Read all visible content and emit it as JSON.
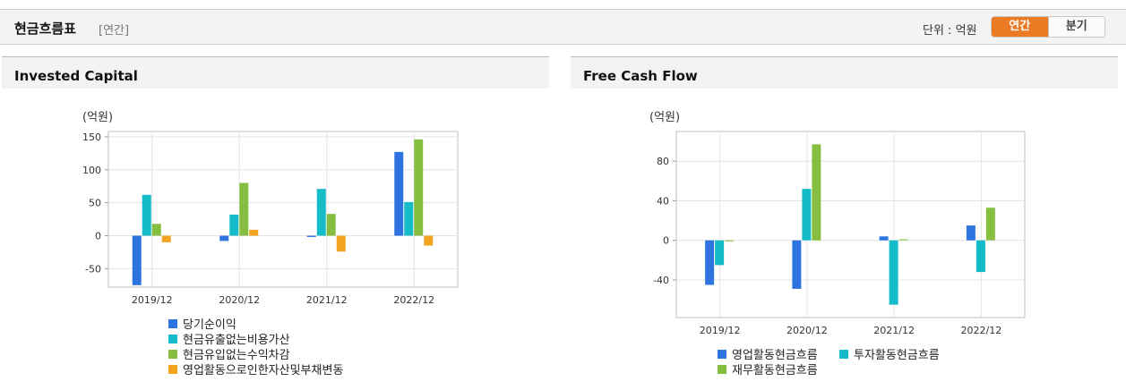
{
  "header": {
    "title": "현금흐름표",
    "period_tag": "[연간]",
    "unit_label": "단위 : 억원",
    "toggle_annual": "연간",
    "toggle_quarter": "분기"
  },
  "chart_data": [
    {
      "type": "bar",
      "panel_title": "Invested Capital",
      "y_unit": "(억원)",
      "categories": [
        "2019/12",
        "2020/12",
        "2021/12",
        "2022/12"
      ],
      "ylim": [
        -78,
        158
      ],
      "yticks": [
        150,
        100,
        50,
        0,
        -50
      ],
      "series": [
        {
          "name": "당기순이익",
          "color": "#2e74e0",
          "values": [
            -75,
            -8,
            -2,
            127
          ]
        },
        {
          "name": "현금유출없는비용가산",
          "color": "#14bcc9",
          "values": [
            62,
            32,
            71,
            51
          ]
        },
        {
          "name": "현금유입없는수익차감",
          "color": "#86bf40",
          "values": [
            18,
            80,
            33,
            146
          ]
        },
        {
          "name": "영업활동으로인한자산및부채변동",
          "color": "#f2a421",
          "values": [
            -10,
            9,
            -24,
            -15
          ]
        }
      ]
    },
    {
      "type": "bar",
      "panel_title": "Free Cash Flow",
      "y_unit": "(억원)",
      "categories": [
        "2019/12",
        "2020/12",
        "2021/12",
        "2022/12"
      ],
      "ylim": [
        -78,
        110
      ],
      "yticks": [
        80,
        40,
        0,
        -40
      ],
      "series": [
        {
          "name": "영업활동현금흐름",
          "color": "#2e74e0",
          "values": [
            -45,
            -49,
            4,
            15
          ]
        },
        {
          "name": "투자활동현금흐름",
          "color": "#14bcc9",
          "values": [
            -25,
            52,
            -65,
            -32
          ]
        },
        {
          "name": "재무활동현금흐름",
          "color": "#86bf40",
          "values": [
            -1,
            97,
            1,
            33
          ]
        }
      ]
    }
  ]
}
